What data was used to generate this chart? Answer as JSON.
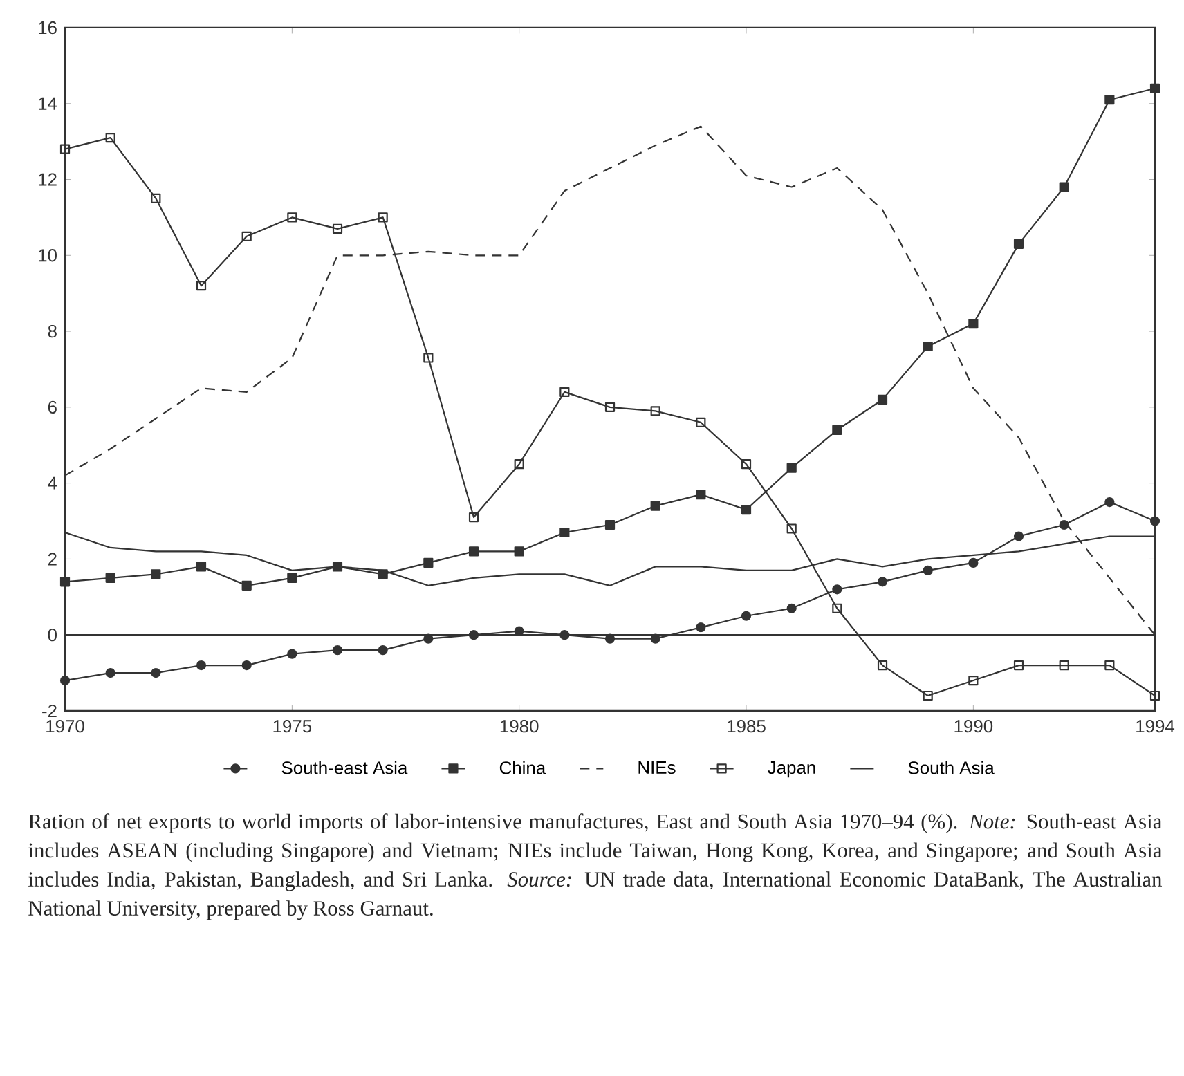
{
  "chart_data": {
    "type": "line",
    "x": [
      1970,
      1971,
      1972,
      1973,
      1974,
      1975,
      1976,
      1977,
      1978,
      1979,
      1980,
      1981,
      1982,
      1983,
      1984,
      1985,
      1986,
      1987,
      1988,
      1989,
      1990,
      1991,
      1992,
      1993,
      1994
    ],
    "series": [
      {
        "name": "South-east Asia",
        "color": "#333333",
        "marker": "circle",
        "line_style": "solid",
        "values": [
          -1.2,
          -1.0,
          -1.0,
          -0.8,
          -0.8,
          -0.5,
          -0.4,
          -0.4,
          -0.1,
          0.0,
          0.1,
          0.0,
          -0.1,
          -0.1,
          0.2,
          0.5,
          0.7,
          1.2,
          1.4,
          1.7,
          1.9,
          2.6,
          2.9,
          3.5,
          3.0
        ]
      },
      {
        "name": "China",
        "color": "#333333",
        "marker": "square",
        "line_style": "solid",
        "values": [
          1.4,
          1.5,
          1.6,
          1.8,
          1.3,
          1.5,
          1.8,
          1.6,
          1.9,
          2.2,
          2.2,
          2.7,
          2.9,
          3.4,
          3.7,
          3.3,
          4.4,
          5.4,
          6.2,
          7.6,
          8.2,
          10.3,
          11.8,
          14.1,
          14.4
        ]
      },
      {
        "name": "NIEs",
        "color": "#333333",
        "marker": "none",
        "line_style": "dashed",
        "values": [
          4.2,
          4.9,
          5.7,
          6.5,
          6.4,
          7.3,
          10.0,
          10.0,
          10.1,
          10.0,
          10.0,
          11.7,
          12.3,
          12.9,
          13.4,
          12.1,
          11.8,
          12.3,
          11.2,
          9.0,
          6.5,
          5.2,
          3.0,
          1.5,
          0.0
        ]
      },
      {
        "name": "Japan",
        "color": "#333333",
        "marker": "square*open",
        "line_style": "solid",
        "values": [
          12.8,
          13.1,
          11.5,
          9.2,
          10.5,
          11.0,
          10.7,
          11.0,
          7.3,
          3.1,
          4.5,
          6.4,
          6.0,
          5.9,
          5.6,
          4.5,
          2.8,
          0.7,
          -0.8,
          -1.6,
          -1.2,
          -0.8,
          -0.8,
          -0.8,
          -1.6
        ]
      },
      {
        "name": "South Asia",
        "color": "#333333",
        "marker": "none",
        "line_style": "solid",
        "values": [
          2.7,
          2.3,
          2.2,
          2.2,
          2.1,
          1.7,
          1.8,
          1.7,
          1.3,
          1.5,
          1.6,
          1.6,
          1.3,
          1.8,
          1.8,
          1.7,
          1.7,
          2.0,
          1.8,
          2.0,
          2.1,
          2.2,
          2.4,
          2.6,
          2.6
        ]
      }
    ],
    "xlim": [
      1970,
      1994
    ],
    "xticks": [
      1970,
      1975,
      1980,
      1985,
      1990,
      1994
    ],
    "ylim": [
      -2,
      16
    ],
    "yticks": [
      -2,
      0,
      2,
      4,
      6,
      8,
      10,
      12,
      14,
      16
    ],
    "ref_lines": [
      {
        "axis": "y",
        "value": 0
      }
    ],
    "legend": "bottom",
    "grid": false,
    "annotations": [
      "Ration of net exports to world imports of labor-intensive manufactures, East and South Asia 1970–94 (%). *Note:* South-east Asia includes ASEAN (including Singapore) and Vietnam; NIEs include Taiwan, Hong Kong, Korea, and Singapore; and South Asia includes India, Pakistan, Bangladesh, and Sri Lanka. *Source:* UN trade data, International Economic DataBank, The Australian National University, prepared by Ross Garnaut."
    ]
  }
}
